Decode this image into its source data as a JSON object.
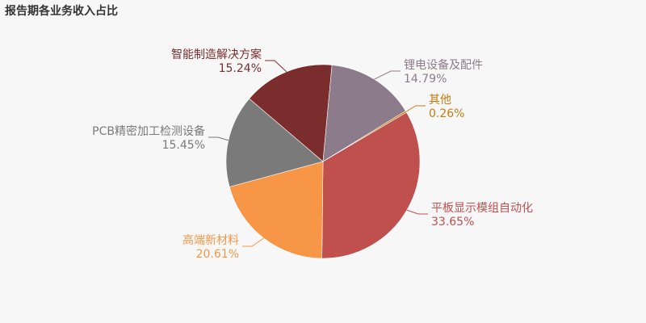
{
  "chart_data": {
    "type": "pie",
    "title": "报告期各业务收入占比",
    "categories": [
      "平板显示模组自动化",
      "高端新材料",
      "PCB精密加工检测设备",
      "智能制造解决方案",
      "锂电设备及配件",
      "其他"
    ],
    "values": [
      33.65,
      20.61,
      15.45,
      15.24,
      14.79,
      0.26
    ],
    "value_labels": [
      "33.65%",
      "20.61%",
      "15.45%",
      "15.24%",
      "14.79%",
      "0.26%"
    ],
    "colors": [
      "#c0504d",
      "#f79646",
      "#7a7a7a",
      "#7b2c2c",
      "#8c7b8a",
      "#c27b12"
    ]
  }
}
